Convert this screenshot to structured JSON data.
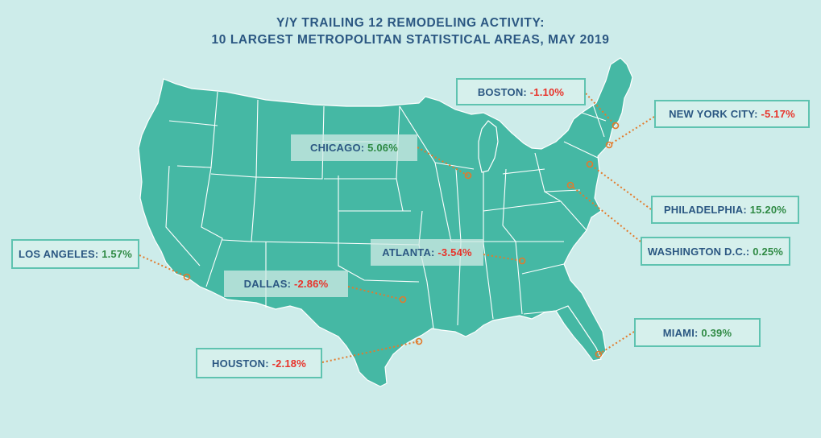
{
  "title_line1": "Y/Y TRAILING 12 REMODELING ACTIVITY:",
  "title_line2": "10 LARGEST METROPOLITAN STATISTICAL AREAS, MAY 2019",
  "colors": {
    "background": "#cdecea",
    "land": "#45b8a4",
    "state_border": "#ffffff",
    "negative": "#e8332a",
    "positive": "#2f8a44",
    "label_text": "#2b5782",
    "leader": "#e37a2b"
  },
  "metros": [
    {
      "id": "boston",
      "name": "BOSTON:",
      "value": "-1.10%",
      "sign": "negative"
    },
    {
      "id": "nyc",
      "name": "NEW YORK CITY:",
      "value": "-5.17%",
      "sign": "negative"
    },
    {
      "id": "chicago",
      "name": "CHICAGO:",
      "value": "5.06%",
      "sign": "positive"
    },
    {
      "id": "philadelphia",
      "name": "PHILADELPHIA:",
      "value": "15.20%",
      "sign": "positive"
    },
    {
      "id": "washington",
      "name": "WASHINGTON D.C.:",
      "value": "0.25%",
      "sign": "positive"
    },
    {
      "id": "la",
      "name": "LOS ANGELES:",
      "value": "1.57%",
      "sign": "positive"
    },
    {
      "id": "atlanta",
      "name": "ATLANTA:",
      "value": "-3.54%",
      "sign": "negative"
    },
    {
      "id": "dallas",
      "name": "DALLAS:",
      "value": "-2.86%",
      "sign": "negative"
    },
    {
      "id": "miami",
      "name": "MIAMI:",
      "value": "0.39%",
      "sign": "positive"
    },
    {
      "id": "houston",
      "name": "HOUSTON:",
      "value": "-2.18%",
      "sign": "negative"
    }
  ]
}
